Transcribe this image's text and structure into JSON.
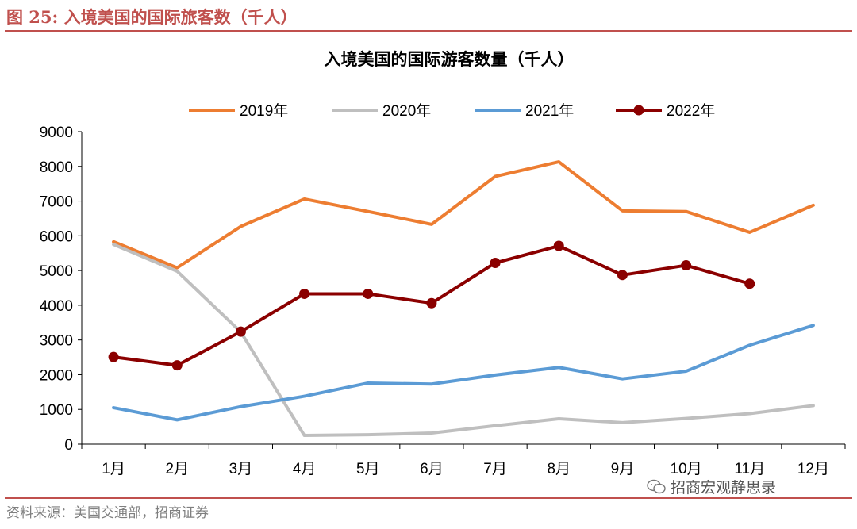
{
  "figure": {
    "title": "图 25:  入境美国的国际旅客数（千人）",
    "source": "资料来源：美国交通部，招商证券",
    "watermark": "招商宏观静思录"
  },
  "chart_data": {
    "type": "line",
    "title": "入境美国的国际游客数量（千人）",
    "categories": [
      "1月",
      "2月",
      "3月",
      "4月",
      "5月",
      "6月",
      "7月",
      "8月",
      "9月",
      "10月",
      "11月",
      "12月"
    ],
    "ylim": [
      0,
      9000
    ],
    "yticks": [
      "0",
      "1000",
      "2000",
      "3000",
      "4000",
      "5000",
      "6000",
      "7000",
      "8000",
      "9000"
    ],
    "xlabel": "",
    "ylabel": "",
    "legend_position": "top",
    "series": [
      {
        "name": "2019年",
        "color": "#ed7d31",
        "marker": false,
        "values": [
          5830,
          5080,
          6270,
          7060,
          6700,
          6330,
          7710,
          8130,
          6720,
          6700,
          6100,
          6880
        ]
      },
      {
        "name": "2020年",
        "color": "#bfbfbf",
        "marker": false,
        "values": [
          5750,
          4980,
          3230,
          250,
          270,
          320,
          530,
          730,
          620,
          740,
          880,
          1110
        ]
      },
      {
        "name": "2021年",
        "color": "#5b9bd5",
        "marker": false,
        "values": [
          1050,
          700,
          1080,
          1380,
          1760,
          1730,
          1990,
          2210,
          1880,
          2100,
          2850,
          3420
        ]
      },
      {
        "name": "2022年",
        "color": "#8b0000",
        "marker": true,
        "values": [
          2510,
          2270,
          3240,
          4330,
          4330,
          4060,
          5220,
          5710,
          4870,
          5150,
          4620,
          null
        ]
      }
    ]
  }
}
